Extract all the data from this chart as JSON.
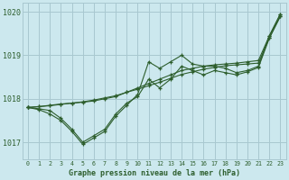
{
  "background_color": "#cce8ee",
  "grid_color": "#a8c8d0",
  "line_color": "#2d5e2d",
  "title": "Graphe pression niveau de la mer (hPa)",
  "xlim": [
    -0.5,
    23.5
  ],
  "ylim": [
    1016.6,
    1020.2
  ],
  "yticks": [
    1017,
    1018,
    1019,
    1020
  ],
  "xticks": [
    0,
    1,
    2,
    3,
    4,
    5,
    6,
    7,
    8,
    9,
    10,
    11,
    12,
    13,
    14,
    15,
    16,
    17,
    18,
    19,
    20,
    21,
    22,
    23
  ],
  "series": [
    {
      "x": [
        0,
        1,
        2,
        3,
        4,
        5,
        6,
        7,
        8,
        9,
        10,
        11,
        12,
        13,
        14,
        15,
        16,
        17,
        18,
        19,
        20,
        21,
        22,
        23
      ],
      "y": [
        1017.8,
        1017.82,
        1017.85,
        1017.88,
        1017.9,
        1017.92,
        1017.95,
        1018.0,
        1018.05,
        1018.15,
        1018.25,
        1018.35,
        1018.45,
        1018.55,
        1018.65,
        1018.7,
        1018.75,
        1018.78,
        1018.8,
        1018.82,
        1018.85,
        1018.88,
        1019.45,
        1019.95
      ]
    },
    {
      "x": [
        0,
        1,
        2,
        3,
        4,
        5,
        6,
        7,
        8,
        9,
        10,
        11,
        12,
        13,
        14,
        15,
        16,
        17,
        18,
        19,
        20,
        21,
        22,
        23
      ],
      "y": [
        1017.8,
        1017.75,
        1017.65,
        1017.5,
        1017.25,
        1016.95,
        1017.1,
        1017.25,
        1017.6,
        1017.85,
        1018.1,
        1018.85,
        1018.7,
        1018.85,
        1019.0,
        1018.8,
        1018.75,
        1018.75,
        1018.7,
        1018.6,
        1018.65,
        1018.75,
        1019.45,
        1019.95
      ]
    },
    {
      "x": [
        0,
        1,
        2,
        3,
        4,
        5,
        6,
        7,
        8,
        9,
        10,
        11,
        12,
        13,
        14,
        15,
        16,
        17,
        18,
        19,
        20,
        21,
        22,
        23
      ],
      "y": [
        1017.8,
        1017.82,
        1017.84,
        1017.87,
        1017.9,
        1017.93,
        1017.97,
        1018.02,
        1018.07,
        1018.15,
        1018.22,
        1018.3,
        1018.38,
        1018.47,
        1018.56,
        1018.62,
        1018.68,
        1018.72,
        1018.76,
        1018.78,
        1018.8,
        1018.82,
        1019.4,
        1019.9
      ]
    },
    {
      "x": [
        0,
        1,
        2,
        3,
        4,
        5,
        6,
        7,
        8,
        9,
        10,
        11,
        12,
        13,
        14,
        15,
        16,
        17,
        18,
        19,
        20,
        21,
        22,
        23
      ],
      "y": [
        1017.8,
        1017.77,
        1017.73,
        1017.55,
        1017.3,
        1017.0,
        1017.15,
        1017.3,
        1017.65,
        1017.9,
        1018.05,
        1018.45,
        1018.25,
        1018.45,
        1018.75,
        1018.65,
        1018.55,
        1018.65,
        1018.6,
        1018.55,
        1018.62,
        1018.72,
        1019.4,
        1019.9
      ]
    }
  ]
}
